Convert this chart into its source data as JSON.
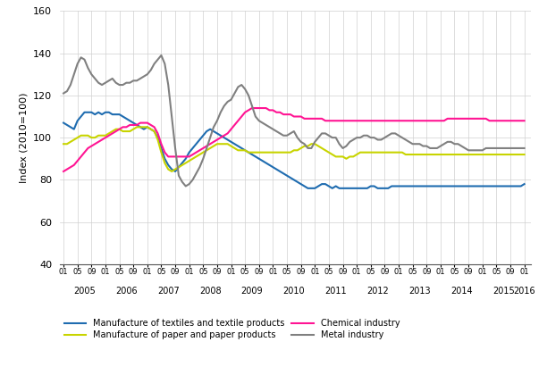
{
  "title": "",
  "ylabel": "Index (2010=100)",
  "ylim": [
    40,
    160
  ],
  "yticks": [
    40,
    60,
    80,
    100,
    120,
    140,
    160
  ],
  "colors": {
    "textiles": "#1f6cb0",
    "paper": "#c8d400",
    "chemical": "#ff1493",
    "metal": "#808080"
  },
  "legend": [
    "Manufacture of textiles and textile products",
    "Manufacture of paper and paper products",
    "Chemical industry",
    "Metal industry"
  ],
  "textiles": [
    107,
    106,
    105,
    104,
    108,
    110,
    112,
    112,
    112,
    111,
    112,
    111,
    112,
    112,
    111,
    111,
    111,
    110,
    109,
    108,
    107,
    106,
    105,
    104,
    105,
    104,
    103,
    100,
    95,
    90,
    87,
    85,
    84,
    86,
    88,
    90,
    93,
    95,
    97,
    99,
    101,
    103,
    104,
    103,
    102,
    101,
    100,
    99,
    98,
    97,
    96,
    95,
    94,
    93,
    92,
    91,
    90,
    89,
    88,
    87,
    86,
    85,
    84,
    83,
    82,
    81,
    80,
    79,
    78,
    77,
    76,
    76,
    76,
    77,
    78,
    78,
    77,
    76,
    77,
    76,
    76,
    76,
    76,
    76,
    76,
    76,
    76,
    76,
    77,
    77,
    76,
    76,
    76,
    76,
    77,
    77,
    77,
    77,
    77,
    77,
    77,
    77,
    77,
    77,
    77,
    77,
    77,
    77,
    77,
    77,
    77,
    77,
    77,
    77,
    77,
    77,
    77,
    77,
    77,
    77,
    77,
    77,
    77,
    77,
    77,
    77,
    77,
    77,
    77,
    77,
    77,
    77,
    78
  ],
  "paper": [
    97,
    97,
    98,
    99,
    100,
    101,
    101,
    101,
    100,
    100,
    101,
    101,
    101,
    102,
    103,
    104,
    104,
    103,
    103,
    103,
    104,
    105,
    105,
    105,
    105,
    104,
    103,
    99,
    93,
    88,
    85,
    84,
    85,
    86,
    87,
    88,
    89,
    90,
    91,
    92,
    93,
    94,
    95,
    96,
    97,
    97,
    97,
    97,
    96,
    95,
    94,
    94,
    94,
    93,
    93,
    93,
    93,
    93,
    93,
    93,
    93,
    93,
    93,
    93,
    93,
    93,
    94,
    94,
    95,
    96,
    96,
    97,
    97,
    96,
    95,
    94,
    93,
    92,
    91,
    91,
    91,
    90,
    91,
    91,
    92,
    93,
    93,
    93,
    93,
    93,
    93,
    93,
    93,
    93,
    93,
    93,
    93,
    93,
    92,
    92,
    92,
    92,
    92,
    92,
    92,
    92,
    92,
    92,
    92,
    92,
    92,
    92,
    92,
    92,
    92,
    92,
    92,
    92,
    92,
    92,
    92,
    92,
    92,
    92,
    92,
    92,
    92,
    92,
    92,
    92,
    92,
    92,
    92
  ],
  "chemical": [
    84,
    85,
    86,
    87,
    89,
    91,
    93,
    95,
    96,
    97,
    98,
    99,
    100,
    101,
    102,
    103,
    104,
    105,
    105,
    106,
    106,
    106,
    107,
    107,
    107,
    106,
    105,
    102,
    97,
    93,
    91,
    91,
    91,
    91,
    91,
    91,
    91,
    92,
    93,
    94,
    95,
    96,
    97,
    98,
    99,
    100,
    101,
    102,
    104,
    106,
    108,
    110,
    112,
    113,
    114,
    114,
    114,
    114,
    114,
    113,
    113,
    112,
    112,
    111,
    111,
    111,
    110,
    110,
    110,
    109,
    109,
    109,
    109,
    109,
    109,
    108,
    108,
    108,
    108,
    108,
    108,
    108,
    108,
    108,
    108,
    108,
    108,
    108,
    108,
    108,
    108,
    108,
    108,
    108,
    108,
    108,
    108,
    108,
    108,
    108,
    108,
    108,
    108,
    108,
    108,
    108,
    108,
    108,
    108,
    108,
    109,
    109,
    109,
    109,
    109,
    109,
    109,
    109,
    109,
    109,
    109,
    109,
    108,
    108,
    108,
    108,
    108,
    108,
    108,
    108,
    108,
    108,
    108
  ],
  "metal": [
    121,
    122,
    125,
    130,
    135,
    138,
    137,
    133,
    130,
    128,
    126,
    125,
    126,
    127,
    128,
    126,
    125,
    125,
    126,
    126,
    127,
    127,
    128,
    129,
    130,
    132,
    135,
    137,
    139,
    135,
    125,
    110,
    95,
    82,
    79,
    77,
    78,
    80,
    83,
    86,
    90,
    95,
    100,
    105,
    108,
    112,
    115,
    117,
    118,
    121,
    124,
    125,
    123,
    120,
    115,
    110,
    108,
    107,
    106,
    105,
    104,
    103,
    102,
    101,
    101,
    102,
    103,
    100,
    98,
    97,
    95,
    95,
    98,
    100,
    102,
    102,
    101,
    100,
    100,
    97,
    95,
    96,
    98,
    99,
    100,
    100,
    101,
    101,
    100,
    100,
    99,
    99,
    100,
    101,
    102,
    102,
    101,
    100,
    99,
    98,
    97,
    97,
    97,
    96,
    96,
    95,
    95,
    95,
    96,
    97,
    98,
    98,
    97,
    97,
    96,
    95,
    94,
    94,
    94,
    94,
    94,
    95,
    95,
    95,
    95,
    95,
    95,
    95,
    95,
    95,
    95,
    95,
    95
  ]
}
